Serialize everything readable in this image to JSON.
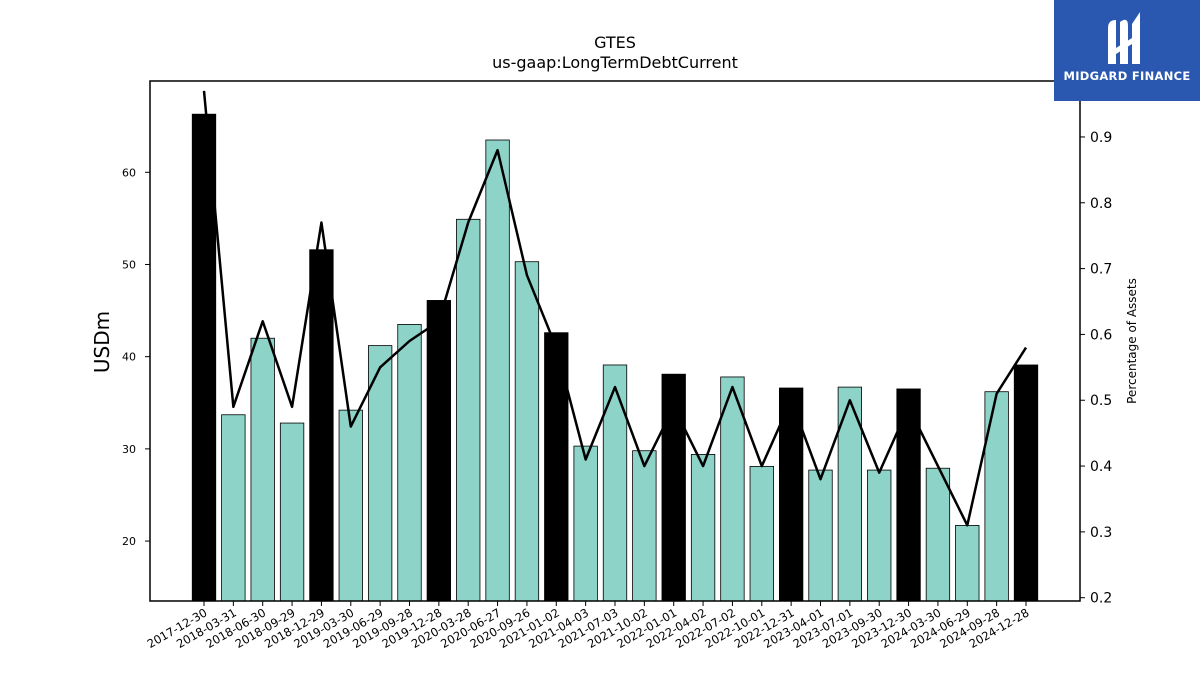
{
  "chart_data": {
    "type": "bar",
    "title": "GTES",
    "subtitle": "us-gaap:LongTermDebtCurrent",
    "ylabel": "USDm",
    "y2label": "Percentage of Assets",
    "ylim": [
      13.5,
      69.9
    ],
    "y2lim": [
      0.195,
      0.985
    ],
    "yticks": [
      20,
      30,
      40,
      50,
      60
    ],
    "y2ticks": [
      0.2,
      0.3,
      0.4,
      0.5,
      0.6,
      0.7,
      0.8,
      0.9
    ],
    "categories": [
      "2017-12-30",
      "2018-03-31",
      "2018-06-30",
      "2018-09-29",
      "2018-12-29",
      "2019-03-30",
      "2019-06-29",
      "2019-09-28",
      "2019-12-28",
      "2020-03-28",
      "2020-06-27",
      "2020-09-26",
      "2021-01-02",
      "2021-04-03",
      "2021-07-03",
      "2021-10-02",
      "2022-01-01",
      "2022-04-02",
      "2022-07-02",
      "2022-10-01",
      "2022-12-31",
      "2023-04-01",
      "2023-07-01",
      "2023-09-30",
      "2023-12-30",
      "2024-03-30",
      "2024-06-29",
      "2024-09-28",
      "2024-12-28"
    ],
    "series": [
      {
        "values": [
          66.3,
          33.7,
          42.0,
          32.8,
          51.6,
          34.2,
          41.2,
          43.5,
          46.1,
          54.9,
          63.5,
          50.3,
          42.6,
          30.3,
          39.1,
          29.8,
          38.1,
          29.4,
          37.8,
          28.1,
          36.6,
          27.7,
          36.7,
          27.7,
          36.5,
          27.9,
          21.7,
          36.2,
          39.1
        ],
        "highlight": [
          true,
          false,
          false,
          false,
          true,
          false,
          false,
          false,
          true,
          false,
          false,
          false,
          true,
          false,
          false,
          false,
          true,
          false,
          false,
          false,
          true,
          false,
          false,
          false,
          true,
          false,
          false,
          false,
          true
        ],
        "color": "#8dd3c7",
        "highlight_color": "#000000"
      },
      {
        "type": "line",
        "axis": "right",
        "values": [
          0.97,
          0.49,
          0.62,
          0.49,
          0.77,
          0.46,
          0.55,
          0.59,
          0.62,
          0.77,
          0.88,
          0.69,
          0.58,
          0.41,
          0.52,
          0.4,
          0.49,
          0.4,
          0.52,
          0.4,
          0.5,
          0.38,
          0.5,
          0.39,
          0.49,
          0.4,
          0.31,
          0.51,
          0.58
        ],
        "color": "#000000"
      }
    ]
  },
  "logo": {
    "text": "MIDGARD FINANCE",
    "color": "#2a58b0"
  }
}
